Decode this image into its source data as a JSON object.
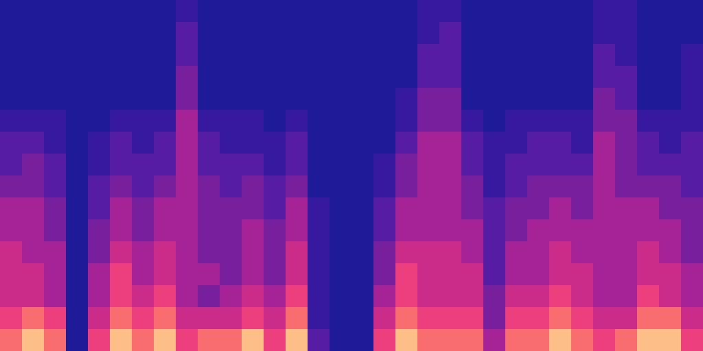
{
  "chart_data": {
    "type": "heatmap",
    "tick_labels": false,
    "values": [
      [
        1,
        1,
        1,
        1,
        1,
        2,
        3,
        3,
        4,
        5,
        5,
        6,
        6,
        6,
        7,
        8
      ],
      [
        1,
        1,
        1,
        1,
        1,
        2,
        3,
        4,
        4,
        5,
        5,
        5,
        6,
        6,
        8,
        9
      ],
      [
        1,
        1,
        1,
        1,
        1,
        2,
        2,
        3,
        3,
        4,
        4,
        5,
        5,
        5,
        7,
        8
      ],
      [
        1,
        1,
        1,
        1,
        1,
        1,
        1,
        1,
        1,
        1,
        1,
        1,
        1,
        1,
        1,
        1
      ],
      [
        1,
        1,
        1,
        1,
        1,
        1,
        2,
        2,
        3,
        3,
        4,
        4,
        5,
        5,
        6,
        7
      ],
      [
        1,
        1,
        1,
        1,
        1,
        2,
        3,
        3,
        4,
        5,
        5,
        6,
        7,
        7,
        8,
        9
      ],
      [
        1,
        1,
        1,
        1,
        1,
        2,
        2,
        3,
        3,
        4,
        4,
        5,
        5,
        6,
        7,
        8
      ],
      [
        1,
        1,
        1,
        1,
        1,
        2,
        3,
        3,
        4,
        5,
        5,
        6,
        6,
        7,
        8,
        9
      ],
      [
        2,
        3,
        3,
        4,
        4,
        5,
        5,
        5,
        5,
        5,
        5,
        5,
        5,
        5,
        6,
        7
      ],
      [
        1,
        1,
        1,
        1,
        1,
        2,
        3,
        3,
        4,
        4,
        4,
        4,
        5,
        4,
        6,
        8
      ],
      [
        1,
        1,
        1,
        1,
        1,
        2,
        2,
        3,
        3,
        4,
        4,
        4,
        4,
        5,
        6,
        8
      ],
      [
        1,
        1,
        1,
        1,
        1,
        2,
        2,
        3,
        4,
        4,
        5,
        5,
        5,
        6,
        7,
        9
      ],
      [
        1,
        1,
        1,
        1,
        1,
        1,
        2,
        2,
        3,
        3,
        4,
        4,
        4,
        5,
        6,
        7
      ],
      [
        1,
        1,
        1,
        1,
        1,
        2,
        3,
        3,
        4,
        5,
        5,
        6,
        6,
        7,
        8,
        9
      ],
      [
        1,
        1,
        1,
        1,
        1,
        1,
        1,
        1,
        1,
        2,
        2,
        2,
        2,
        2,
        2,
        3
      ],
      [
        1,
        1,
        1,
        1,
        1,
        1,
        1,
        1,
        1,
        1,
        1,
        1,
        1,
        1,
        1,
        1
      ],
      [
        1,
        1,
        1,
        1,
        1,
        1,
        1,
        1,
        1,
        1,
        1,
        1,
        1,
        1,
        1,
        1
      ],
      [
        1,
        1,
        1,
        1,
        1,
        1,
        1,
        2,
        2,
        3,
        3,
        4,
        4,
        5,
        6,
        7
      ],
      [
        1,
        1,
        1,
        1,
        2,
        2,
        3,
        4,
        4,
        5,
        5,
        6,
        7,
        7,
        8,
        9
      ],
      [
        2,
        2,
        3,
        3,
        4,
        4,
        5,
        5,
        5,
        5,
        5,
        6,
        6,
        6,
        7,
        8
      ],
      [
        2,
        3,
        3,
        3,
        4,
        4,
        5,
        5,
        5,
        5,
        5,
        6,
        6,
        6,
        7,
        8
      ],
      [
        1,
        1,
        1,
        1,
        1,
        2,
        3,
        3,
        4,
        4,
        5,
        5,
        6,
        6,
        7,
        8
      ],
      [
        1,
        1,
        1,
        1,
        1,
        1,
        2,
        2,
        2,
        3,
        3,
        3,
        3,
        4,
        4,
        5
      ],
      [
        1,
        1,
        1,
        1,
        1,
        2,
        2,
        3,
        3,
        4,
        4,
        5,
        5,
        6,
        7,
        8
      ],
      [
        1,
        1,
        1,
        1,
        1,
        2,
        3,
        3,
        4,
        4,
        5,
        5,
        5,
        6,
        7,
        8
      ],
      [
        1,
        1,
        1,
        1,
        1,
        2,
        3,
        3,
        4,
        5,
        5,
        6,
        6,
        7,
        8,
        9
      ],
      [
        1,
        1,
        1,
        1,
        1,
        2,
        2,
        3,
        4,
        4,
        5,
        5,
        6,
        6,
        7,
        8
      ],
      [
        2,
        2,
        3,
        3,
        4,
        4,
        5,
        5,
        5,
        5,
        5,
        5,
        5,
        5,
        6,
        7
      ],
      [
        2,
        2,
        2,
        3,
        3,
        4,
        4,
        4,
        4,
        5,
        5,
        5,
        5,
        5,
        6,
        8
      ],
      [
        1,
        1,
        1,
        1,
        1,
        2,
        3,
        3,
        4,
        5,
        5,
        6,
        6,
        7,
        8,
        9
      ],
      [
        1,
        1,
        1,
        1,
        1,
        2,
        2,
        3,
        4,
        4,
        5,
        5,
        6,
        6,
        8,
        9
      ],
      [
        1,
        1,
        2,
        2,
        2,
        2,
        3,
        3,
        3,
        4,
        4,
        4,
        5,
        5,
        6,
        7
      ]
    ]
  }
}
